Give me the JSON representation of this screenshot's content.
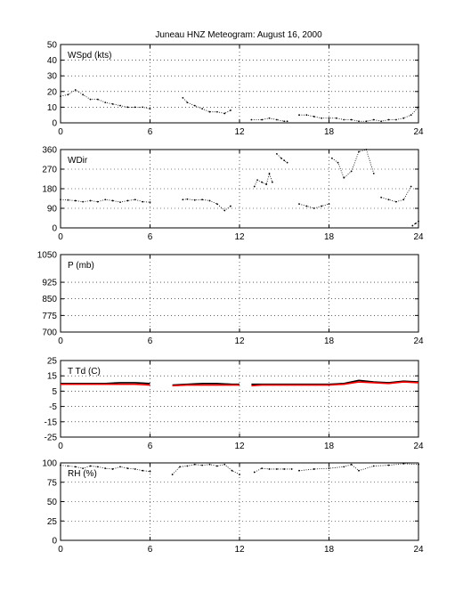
{
  "figure": {
    "title": "Juneau HNZ Meteogram:     August 16, 2000"
  },
  "colors": {
    "trace": "#000000",
    "dewpoint": "#ff0000",
    "grid": "#000000"
  },
  "chart_data": [
    {
      "type": "scatter",
      "label": "WSpd (kts)",
      "xlim": [
        0,
        24
      ],
      "ylim": [
        0,
        50
      ],
      "xticks": [
        0,
        6,
        12,
        18,
        24
      ],
      "yticks": [
        0,
        10,
        20,
        30,
        40,
        50
      ],
      "grid": true,
      "series": [
        {
          "x": [
            0,
            0.5,
            1,
            1.5,
            2,
            2.5,
            3,
            3.5,
            4,
            4.5,
            5,
            5.5,
            6
          ],
          "y": [
            17,
            18,
            21,
            18,
            15,
            15,
            13,
            12,
            11,
            10,
            10,
            10,
            9
          ]
        },
        {
          "x": [
            8.2,
            8.5,
            9,
            9.5,
            10,
            10.5,
            11,
            11.4
          ],
          "y": [
            16,
            13,
            11,
            9,
            7,
            7,
            6,
            8
          ]
        },
        {
          "x": [
            12.8,
            13.5,
            14,
            14.5,
            15,
            15.2
          ],
          "y": [
            2,
            2,
            3,
            2,
            1,
            1
          ]
        },
        {
          "x": [
            16,
            16.5,
            17,
            17.5,
            18,
            18.5,
            19,
            19.5,
            20,
            20.5,
            21,
            21.5,
            22,
            22.5,
            23,
            23.5,
            24
          ],
          "y": [
            5,
            5,
            4,
            3,
            3,
            3,
            2,
            2,
            1,
            1,
            2,
            1,
            2,
            2,
            3,
            5,
            10
          ]
        }
      ]
    },
    {
      "type": "scatter",
      "label": "WDir",
      "xlim": [
        0,
        24
      ],
      "ylim": [
        0,
        360
      ],
      "xticks": [
        0,
        6,
        12,
        18,
        24
      ],
      "yticks": [
        0,
        90,
        180,
        270,
        360
      ],
      "grid": true,
      "series": [
        {
          "x": [
            0,
            0.5,
            1,
            1.5,
            2,
            2.5,
            3,
            3.5,
            4,
            4.5,
            5,
            5.5,
            6
          ],
          "y": [
            130,
            128,
            125,
            120,
            125,
            120,
            130,
            125,
            118,
            125,
            130,
            120,
            118
          ]
        },
        {
          "x": [
            8.2,
            8.5,
            9,
            9.5,
            10,
            10.5,
            11,
            11.4
          ],
          "y": [
            130,
            132,
            128,
            130,
            125,
            110,
            80,
            100
          ]
        },
        {
          "x": [
            13,
            13.2,
            13.5,
            13.8,
            14,
            14.2
          ],
          "y": [
            190,
            220,
            210,
            200,
            250,
            210
          ]
        },
        {
          "x": [
            14.5,
            14.8,
            15,
            15.2
          ],
          "y": [
            340,
            320,
            310,
            300
          ]
        },
        {
          "x": [
            16,
            16.5,
            17,
            17.5,
            18
          ],
          "y": [
            110,
            100,
            90,
            100,
            110
          ]
        },
        {
          "x": [
            18.2,
            18.6,
            19,
            19.5,
            20,
            20.5,
            21
          ],
          "y": [
            320,
            300,
            230,
            260,
            350,
            360,
            250
          ]
        },
        {
          "x": [
            21.5,
            22,
            22.5,
            23,
            23.5
          ],
          "y": [
            140,
            130,
            120,
            130,
            190
          ]
        },
        {
          "x": [
            23.6,
            23.8,
            24
          ],
          "y": [
            10,
            20,
            30
          ]
        }
      ]
    },
    {
      "type": "scatter",
      "label": "P (mb)",
      "xlim": [
        0,
        24
      ],
      "ylim": [
        700,
        1050
      ],
      "xticks": [
        0,
        6,
        12,
        18,
        24
      ],
      "yticks": [
        700,
        775,
        850,
        925,
        1050
      ],
      "grid": true,
      "series": []
    },
    {
      "type": "line",
      "label": "T Td (C)",
      "xlim": [
        0,
        24
      ],
      "ylim": [
        -25,
        25
      ],
      "xticks": [
        0,
        6,
        12,
        18,
        24
      ],
      "yticks": [
        -25,
        -15,
        -5,
        5,
        15,
        25
      ],
      "grid": true,
      "series": [
        {
          "color": "#000000",
          "x": [
            0,
            1,
            2,
            3,
            4,
            5,
            6
          ],
          "y": [
            10,
            10,
            10,
            10,
            10.5,
            10.5,
            10
          ]
        },
        {
          "color": "#ff0000",
          "x": [
            0,
            1,
            2,
            3,
            4,
            5,
            6
          ],
          "y": [
            9.5,
            9.5,
            9.5,
            9.5,
            9.5,
            9.5,
            9
          ]
        },
        {
          "color": "#000000",
          "x": [
            7.5,
            8.5,
            9.5,
            10.5,
            11.5,
            12
          ],
          "y": [
            9,
            9.5,
            10,
            10,
            9.5,
            9.5
          ]
        },
        {
          "color": "#ff0000",
          "x": [
            7.5,
            8.5,
            9.5,
            10.5,
            11.5,
            12
          ],
          "y": [
            8.5,
            9,
            9,
            9,
            9,
            9
          ]
        },
        {
          "color": "#000000",
          "x": [
            12.8,
            13.5,
            14.5,
            15.5,
            16
          ],
          "y": [
            9.5,
            9.5,
            9.5,
            9.5,
            9.5
          ]
        },
        {
          "color": "#ff0000",
          "x": [
            12.8,
            13.5,
            14.5,
            15.5,
            16
          ],
          "y": [
            8.5,
            9,
            9,
            9,
            9
          ]
        },
        {
          "color": "#000000",
          "x": [
            16,
            17,
            18,
            19,
            20,
            21,
            22,
            23,
            24
          ],
          "y": [
            9.5,
            9.5,
            9.5,
            10,
            12,
            11,
            10.5,
            11.5,
            11
          ]
        },
        {
          "color": "#ff0000",
          "x": [
            16,
            17,
            18,
            19,
            20,
            21,
            22,
            23,
            24
          ],
          "y": [
            9,
            9,
            9,
            9.5,
            11,
            10.5,
            10,
            11,
            10.5
          ]
        }
      ]
    },
    {
      "type": "scatter",
      "label": "RH (%)",
      "xlim": [
        0,
        24
      ],
      "ylim": [
        0,
        100
      ],
      "xticks": [
        0,
        6,
        12,
        18,
        24
      ],
      "yticks": [
        0,
        25,
        50,
        75,
        100
      ],
      "grid": true,
      "series": [
        {
          "x": [
            0,
            0.5,
            1,
            1.5,
            2,
            2.5,
            3,
            3.5,
            4,
            4.5,
            5,
            5.5,
            6
          ],
          "y": [
            97,
            96,
            95,
            93,
            96,
            95,
            93,
            92,
            95,
            93,
            92,
            90,
            89
          ]
        },
        {
          "x": [
            7.5,
            8,
            8.5,
            9,
            9.5,
            10,
            10.5,
            11,
            11.5,
            12
          ],
          "y": [
            85,
            95,
            96,
            98,
            97,
            98,
            96,
            98,
            90,
            85
          ]
        },
        {
          "x": [
            13,
            13.5,
            14,
            14.5,
            15,
            15.5
          ],
          "y": [
            88,
            93,
            92,
            92,
            92,
            92
          ]
        },
        {
          "x": [
            16,
            17,
            18,
            19,
            19.5,
            20,
            21,
            22,
            23,
            24
          ],
          "y": [
            90,
            92,
            93,
            95,
            98,
            90,
            96,
            97,
            99,
            98
          ]
        }
      ]
    }
  ]
}
